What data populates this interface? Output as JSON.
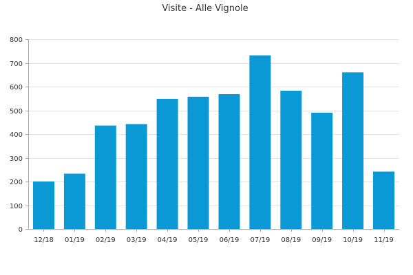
{
  "chart_data": {
    "type": "bar",
    "title": "Visite - Alle Vignole",
    "xlabel": "",
    "ylabel": "",
    "categories": [
      "12/18",
      "01/19",
      "02/19",
      "03/19",
      "04/19",
      "05/19",
      "06/19",
      "07/19",
      "08/19",
      "09/19",
      "10/19",
      "11/19"
    ],
    "values": [
      200,
      233,
      436,
      442,
      548,
      557,
      568,
      732,
      583,
      490,
      660,
      242
    ],
    "ylim": [
      0,
      800
    ],
    "yticks": [
      0,
      100,
      200,
      300,
      400,
      500,
      600,
      700,
      800
    ],
    "grid": true,
    "legend": "none",
    "colors": {
      "bar": "#0a99d4",
      "grid": "#e3e3e3",
      "axis": "#a9a9a9",
      "text": "#333333"
    }
  }
}
